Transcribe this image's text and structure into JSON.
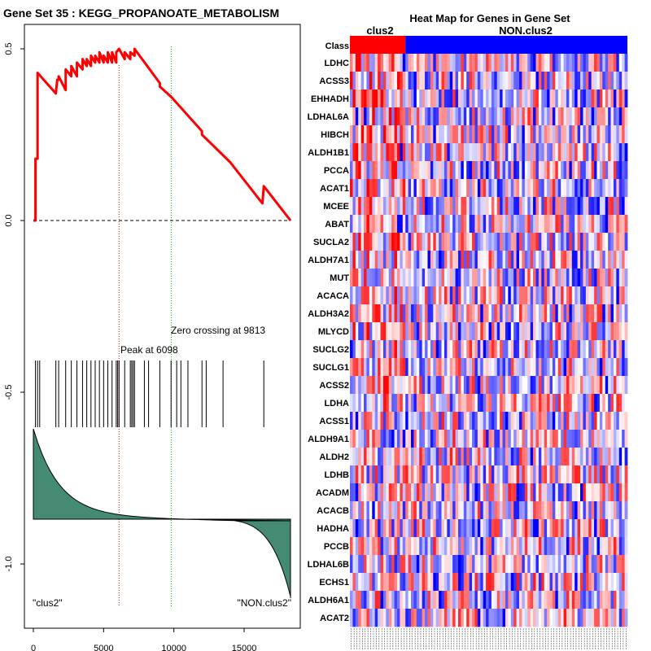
{
  "chart_data": [
    {
      "type": "line",
      "title": "Gene Set  35 : KEGG_PROPANOATE_METABOLISM",
      "x_range": [
        0,
        18500
      ],
      "y_range": [
        -1.12,
        0.55
      ],
      "x_ticks": [
        0,
        5000,
        10000,
        15000
      ],
      "x_tick_labels": [
        "0",
        "5000",
        "10000",
        "15000"
      ],
      "y_ticks": [
        0.5,
        0.0,
        -0.5,
        -1.0
      ],
      "y_tick_labels": [
        "0.5",
        "0.0",
        "-0.5",
        "-1.0"
      ],
      "enrichment_curve": {
        "x": [
          0,
          150,
          150,
          300,
          300,
          1600,
          1700,
          1800,
          1800,
          2300,
          2300,
          2700,
          2700,
          3100,
          3100,
          3500,
          3500,
          3800,
          3800,
          4100,
          4100,
          4400,
          4400,
          4700,
          4700,
          5000,
          5000,
          5300,
          5300,
          5600,
          5600,
          5900,
          5900,
          6098,
          6098,
          6500,
          6500,
          6900,
          6900,
          7200,
          7200,
          9000,
          9000,
          9813,
          12000,
          12000,
          14000,
          16300,
          16400,
          18300
        ],
        "y": [
          0.0,
          0.0,
          0.18,
          0.18,
          0.43,
          0.37,
          0.41,
          0.41,
          0.42,
          0.38,
          0.44,
          0.42,
          0.45,
          0.42,
          0.46,
          0.44,
          0.47,
          0.45,
          0.47,
          0.45,
          0.48,
          0.46,
          0.48,
          0.46,
          0.49,
          0.46,
          0.48,
          0.46,
          0.49,
          0.46,
          0.49,
          0.46,
          0.49,
          0.5,
          0.5,
          0.47,
          0.49,
          0.47,
          0.49,
          0.48,
          0.5,
          0.4,
          0.39,
          0.36,
          0.26,
          0.25,
          0.17,
          0.05,
          0.1,
          0.0
        ]
      },
      "peak": {
        "position": 6098,
        "label": "Peak at 6098"
      },
      "zero_crossing": {
        "position": 9813,
        "label": "Zero crossing at 9813"
      },
      "hit_positions": [
        150,
        300,
        450,
        1600,
        1800,
        2300,
        2700,
        3100,
        3500,
        3800,
        4100,
        4400,
        4700,
        5000,
        5300,
        5600,
        5900,
        6000,
        6098,
        6500,
        6900,
        7000,
        7100,
        7200,
        7900,
        8200,
        9000,
        9800,
        10200,
        10500,
        11000,
        12000,
        12300,
        13500,
        16400
      ],
      "ranked_list_labels": {
        "left": "\"clus2\"",
        "right": "\"NON.clus2\""
      },
      "colors": {
        "curve": "#ff0000",
        "peak_line": "#ff0000",
        "zero_line": "#00c000",
        "fill": "#458b74"
      }
    },
    {
      "type": "heatmap",
      "title": "Heat Map for Genes in Gene Set",
      "class_labels": [
        "clus2",
        "NON.clus2"
      ],
      "class_colors": [
        "#ff0000",
        "#0000ff"
      ],
      "class_row_label": "Class",
      "class_split_fraction": 0.2,
      "genes": [
        "LDHC",
        "ACSS3",
        "EHHADH",
        "LDHAL6A",
        "HIBCH",
        "ALDH1B1",
        "PCCA",
        "ACAT1",
        "MCEE",
        "ABAT",
        "SUCLA2",
        "ALDH7A1",
        "MUT",
        "ACACA",
        "ALDH3A2",
        "MLYCD",
        "SUCLG2",
        "SUCLG1",
        "ACSS2",
        "LDHA",
        "ACSS1",
        "ALDH9A1",
        "ALDH2",
        "LDHB",
        "ACADM",
        "ACACB",
        "HADHA",
        "PCCB",
        "LDHAL6B",
        "ECHS1",
        "ALDH6A1",
        "ACAT2"
      ],
      "sample_count": 100,
      "value_range": [
        -3,
        3
      ],
      "colors": {
        "low": "#0000ff",
        "mid": "#ffffff",
        "high": "#ff0000"
      }
    }
  ]
}
